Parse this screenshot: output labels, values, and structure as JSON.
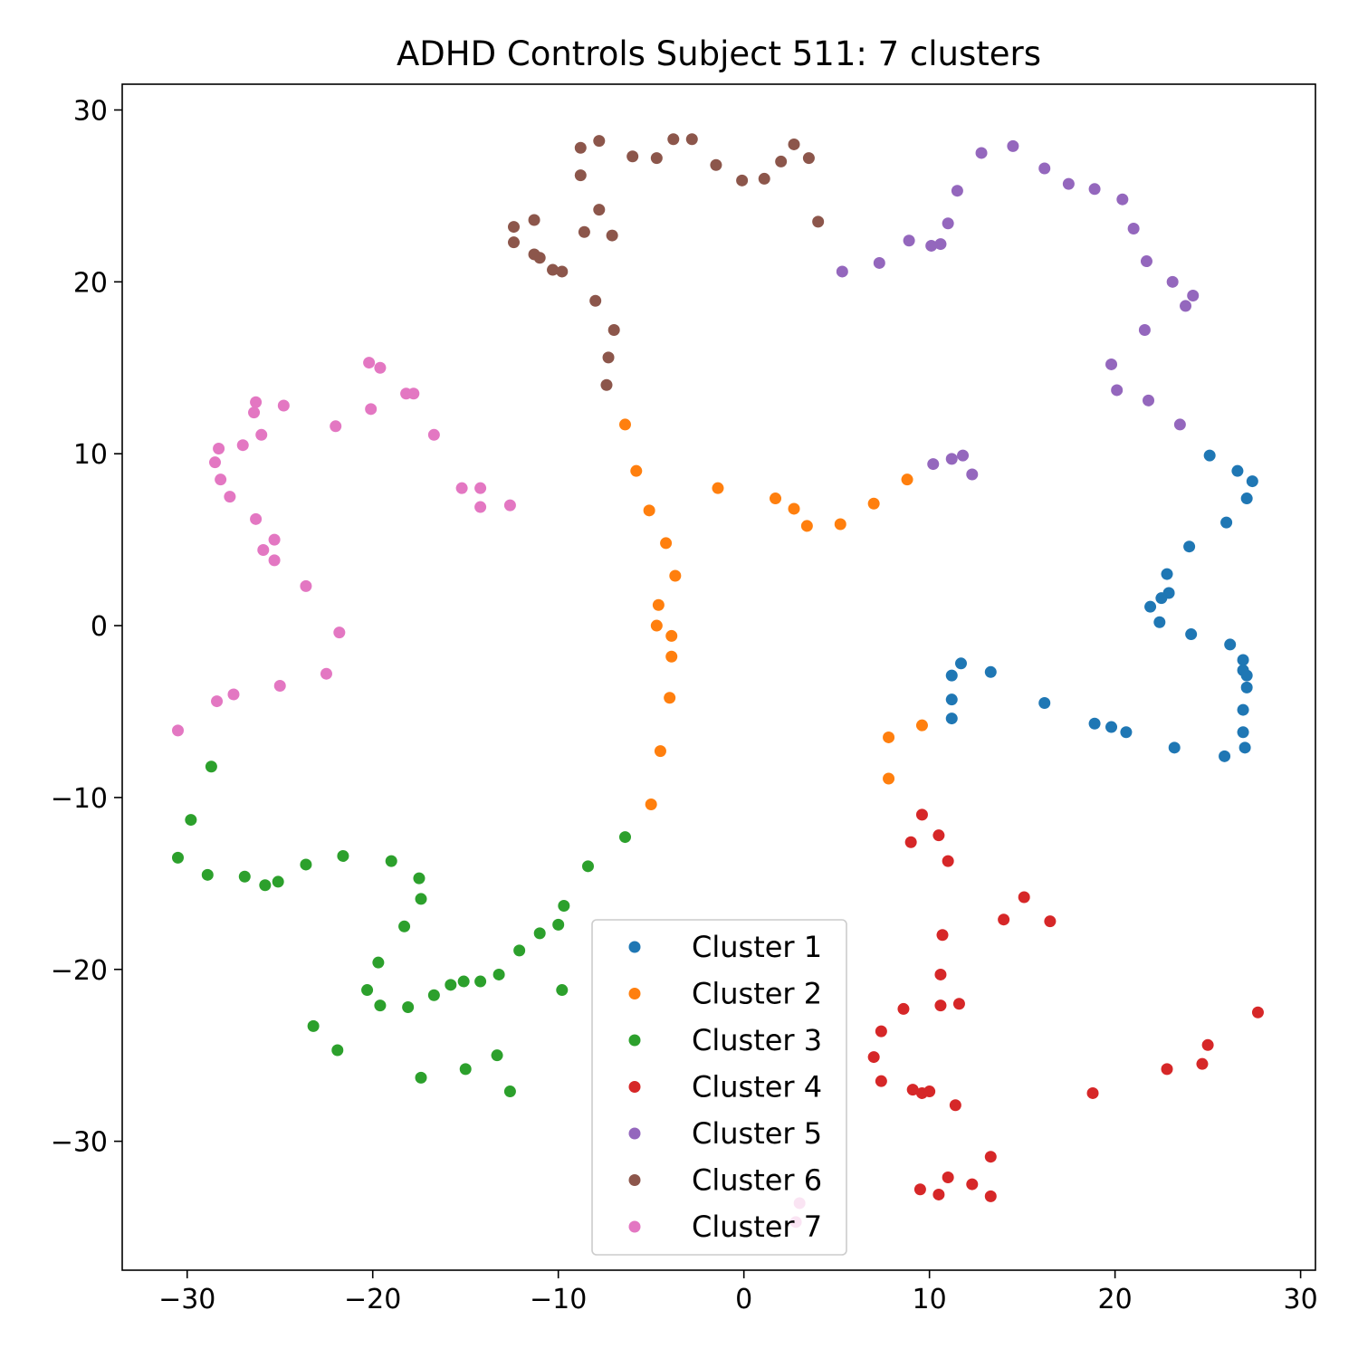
{
  "chart_data": {
    "type": "scatter",
    "title": "ADHD Controls Subject 511: 7 clusters",
    "xlabel": "",
    "ylabel": "",
    "xlim": [
      -33.5,
      30.8
    ],
    "ylim": [
      -37.5,
      31.5
    ],
    "xticks": [
      -30,
      -20,
      -10,
      0,
      10,
      20,
      30
    ],
    "yticks": [
      -30,
      -20,
      -10,
      0,
      10,
      20,
      30
    ],
    "grid": false,
    "legend_position": "bottom-center",
    "series": [
      {
        "name": "Cluster 1",
        "color": "#1f77b4",
        "points": [
          [
            25.1,
            9.9
          ],
          [
            26.6,
            9.0
          ],
          [
            27.4,
            8.4
          ],
          [
            27.1,
            7.4
          ],
          [
            26.0,
            6.0
          ],
          [
            24.0,
            4.6
          ],
          [
            22.8,
            3.0
          ],
          [
            22.9,
            1.9
          ],
          [
            22.5,
            1.6
          ],
          [
            21.9,
            1.1
          ],
          [
            22.4,
            0.2
          ],
          [
            24.1,
            -0.5
          ],
          [
            26.2,
            -1.1
          ],
          [
            26.9,
            -2.0
          ],
          [
            26.9,
            -2.6
          ],
          [
            27.1,
            -2.9
          ],
          [
            27.1,
            -3.6
          ],
          [
            26.9,
            -4.9
          ],
          [
            26.9,
            -6.2
          ],
          [
            27.0,
            -7.1
          ],
          [
            25.9,
            -7.6
          ],
          [
            23.2,
            -7.1
          ],
          [
            20.6,
            -6.2
          ],
          [
            19.8,
            -5.9
          ],
          [
            18.9,
            -5.7
          ],
          [
            16.2,
            -4.5
          ],
          [
            13.3,
            -2.7
          ],
          [
            11.7,
            -2.2
          ],
          [
            11.2,
            -2.9
          ],
          [
            11.2,
            -4.3
          ],
          [
            11.2,
            -5.4
          ]
        ]
      },
      {
        "name": "Cluster 2",
        "color": "#ff7f0e",
        "points": [
          [
            -6.4,
            11.7
          ],
          [
            -5.8,
            9.0
          ],
          [
            -5.1,
            6.7
          ],
          [
            -1.4,
            8.0
          ],
          [
            1.7,
            7.4
          ],
          [
            2.7,
            6.8
          ],
          [
            3.4,
            5.8
          ],
          [
            5.2,
            5.9
          ],
          [
            7.0,
            7.1
          ],
          [
            8.8,
            8.5
          ],
          [
            -4.2,
            4.8
          ],
          [
            -3.7,
            2.9
          ],
          [
            -4.6,
            1.2
          ],
          [
            -4.7,
            0.0
          ],
          [
            -3.9,
            -0.6
          ],
          [
            -3.9,
            -1.8
          ],
          [
            -4.0,
            -4.2
          ],
          [
            -4.5,
            -7.3
          ],
          [
            -5.0,
            -10.4
          ],
          [
            7.8,
            -6.5
          ],
          [
            9.6,
            -5.8
          ],
          [
            7.8,
            -8.9
          ]
        ]
      },
      {
        "name": "Cluster 3",
        "color": "#2ca02c",
        "points": [
          [
            -28.7,
            -8.2
          ],
          [
            -29.8,
            -11.3
          ],
          [
            -30.5,
            -13.5
          ],
          [
            -28.9,
            -14.5
          ],
          [
            -26.9,
            -14.6
          ],
          [
            -25.8,
            -15.1
          ],
          [
            -25.1,
            -14.9
          ],
          [
            -23.6,
            -13.9
          ],
          [
            -21.6,
            -13.4
          ],
          [
            -19.0,
            -13.7
          ],
          [
            -17.5,
            -14.7
          ],
          [
            -17.4,
            -15.9
          ],
          [
            -18.3,
            -17.5
          ],
          [
            -19.7,
            -19.6
          ],
          [
            -20.3,
            -21.2
          ],
          [
            -19.6,
            -22.1
          ],
          [
            -18.1,
            -22.2
          ],
          [
            -16.7,
            -21.5
          ],
          [
            -15.8,
            -20.9
          ],
          [
            -15.1,
            -20.7
          ],
          [
            -14.2,
            -20.7
          ],
          [
            -13.2,
            -20.3
          ],
          [
            -12.1,
            -18.9
          ],
          [
            -11.0,
            -17.9
          ],
          [
            -10.0,
            -17.4
          ],
          [
            -9.7,
            -16.3
          ],
          [
            -8.4,
            -14.0
          ],
          [
            -6.4,
            -12.3
          ],
          [
            -9.8,
            -21.2
          ],
          [
            -23.2,
            -23.3
          ],
          [
            -21.9,
            -24.7
          ],
          [
            -17.4,
            -26.3
          ],
          [
            -15.0,
            -25.8
          ],
          [
            -13.3,
            -25.0
          ],
          [
            -12.6,
            -27.1
          ]
        ]
      },
      {
        "name": "Cluster 4",
        "color": "#d62728",
        "points": [
          [
            9.6,
            -11.0
          ],
          [
            9.0,
            -12.6
          ],
          [
            10.5,
            -12.2
          ],
          [
            11.0,
            -13.7
          ],
          [
            15.1,
            -15.8
          ],
          [
            16.5,
            -17.2
          ],
          [
            14.0,
            -17.1
          ],
          [
            10.7,
            -18.0
          ],
          [
            10.6,
            -20.3
          ],
          [
            10.6,
            -22.1
          ],
          [
            11.6,
            -22.0
          ],
          [
            8.6,
            -22.3
          ],
          [
            7.4,
            -23.6
          ],
          [
            7.0,
            -25.1
          ],
          [
            7.4,
            -26.5
          ],
          [
            9.1,
            -27.0
          ],
          [
            9.6,
            -27.2
          ],
          [
            10.0,
            -27.1
          ],
          [
            11.4,
            -27.9
          ],
          [
            18.8,
            -27.2
          ],
          [
            22.8,
            -25.8
          ],
          [
            24.7,
            -25.5
          ],
          [
            25.0,
            -24.4
          ],
          [
            27.7,
            -22.5
          ],
          [
            13.3,
            -30.9
          ],
          [
            11.0,
            -32.1
          ],
          [
            12.3,
            -32.5
          ],
          [
            9.5,
            -32.8
          ],
          [
            10.5,
            -33.1
          ],
          [
            13.3,
            -33.2
          ]
        ]
      },
      {
        "name": "Cluster 5",
        "color": "#9467bd",
        "points": [
          [
            14.5,
            27.9
          ],
          [
            12.8,
            27.5
          ],
          [
            16.2,
            26.6
          ],
          [
            17.5,
            25.7
          ],
          [
            18.9,
            25.4
          ],
          [
            20.4,
            24.8
          ],
          [
            11.5,
            25.3
          ],
          [
            11.0,
            23.4
          ],
          [
            21.0,
            23.1
          ],
          [
            10.6,
            22.2
          ],
          [
            10.1,
            22.1
          ],
          [
            8.9,
            22.4
          ],
          [
            7.3,
            21.1
          ],
          [
            5.3,
            20.6
          ],
          [
            21.7,
            21.2
          ],
          [
            23.1,
            20.0
          ],
          [
            24.2,
            19.2
          ],
          [
            23.8,
            18.6
          ],
          [
            21.6,
            17.2
          ],
          [
            19.8,
            15.2
          ],
          [
            20.1,
            13.7
          ],
          [
            21.8,
            13.1
          ],
          [
            23.5,
            11.7
          ],
          [
            11.8,
            9.9
          ],
          [
            11.2,
            9.7
          ],
          [
            10.2,
            9.4
          ],
          [
            12.3,
            8.8
          ]
        ]
      },
      {
        "name": "Cluster 6",
        "color": "#8c564b",
        "points": [
          [
            -3.8,
            28.3
          ],
          [
            -2.8,
            28.3
          ],
          [
            -7.8,
            28.2
          ],
          [
            -8.8,
            27.8
          ],
          [
            2.7,
            28.0
          ],
          [
            -6.0,
            27.3
          ],
          [
            -4.7,
            27.2
          ],
          [
            3.5,
            27.2
          ],
          [
            2.0,
            27.0
          ],
          [
            -1.5,
            26.8
          ],
          [
            -8.8,
            26.2
          ],
          [
            -0.1,
            25.9
          ],
          [
            1.1,
            26.0
          ],
          [
            -7.8,
            24.2
          ],
          [
            -11.3,
            23.6
          ],
          [
            4.0,
            23.5
          ],
          [
            -12.4,
            23.2
          ],
          [
            -8.6,
            22.9
          ],
          [
            -7.1,
            22.7
          ],
          [
            -12.4,
            22.3
          ],
          [
            -11.3,
            21.6
          ],
          [
            -11.0,
            21.4
          ],
          [
            -10.3,
            20.7
          ],
          [
            -9.8,
            20.6
          ],
          [
            -8.0,
            18.9
          ],
          [
            -7.0,
            17.2
          ],
          [
            -7.3,
            15.6
          ],
          [
            -7.4,
            14.0
          ]
        ]
      },
      {
        "name": "Cluster 7",
        "color": "#e377c2",
        "points": [
          [
            -20.2,
            15.3
          ],
          [
            -19.6,
            15.0
          ],
          [
            -18.2,
            13.5
          ],
          [
            -17.8,
            13.5
          ],
          [
            -26.3,
            13.0
          ],
          [
            -24.8,
            12.8
          ],
          [
            -20.1,
            12.6
          ],
          [
            -26.4,
            12.4
          ],
          [
            -22.0,
            11.6
          ],
          [
            -26.0,
            11.1
          ],
          [
            -16.7,
            11.1
          ],
          [
            -27.0,
            10.5
          ],
          [
            -28.3,
            10.3
          ],
          [
            -28.5,
            9.5
          ],
          [
            -28.2,
            8.5
          ],
          [
            -15.2,
            8.0
          ],
          [
            -14.2,
            8.0
          ],
          [
            -27.7,
            7.5
          ],
          [
            -12.6,
            7.0
          ],
          [
            -14.2,
            6.9
          ],
          [
            -26.3,
            6.2
          ],
          [
            -25.3,
            5.0
          ],
          [
            -25.9,
            4.4
          ],
          [
            -25.3,
            3.8
          ],
          [
            -23.6,
            2.3
          ],
          [
            -21.8,
            -0.4
          ],
          [
            -22.5,
            -2.8
          ],
          [
            -25.0,
            -3.5
          ],
          [
            -27.5,
            -4.0
          ],
          [
            -28.4,
            -4.4
          ],
          [
            -30.5,
            -6.1
          ],
          [
            3.0,
            -33.6
          ],
          [
            2.8,
            -34.7
          ]
        ]
      }
    ]
  }
}
